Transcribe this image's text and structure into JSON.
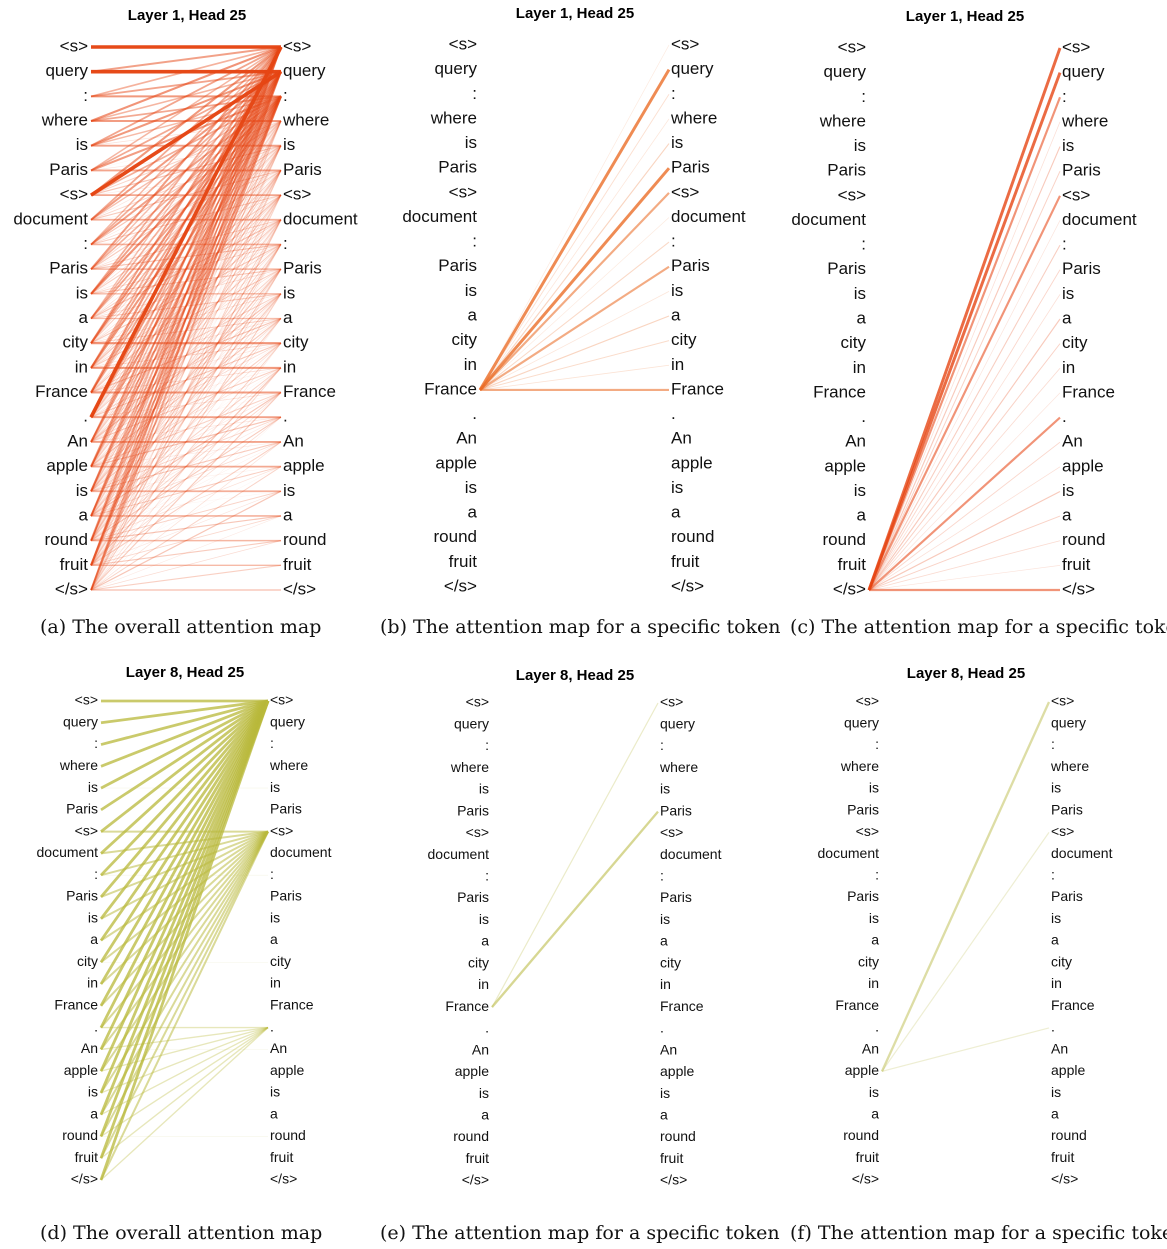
{
  "tokens": [
    "<s>",
    "query",
    ":",
    "where",
    "is",
    "Paris",
    "<s>",
    "document",
    ":",
    "Paris",
    "is",
    "a",
    "city",
    "in",
    "France",
    ".",
    "An",
    "apple",
    "is",
    "a",
    "round",
    "fruit",
    "</s>"
  ],
  "panels": [
    {
      "title": "Layer 1, Head 25",
      "caption": "(a) The overall attention map"
    },
    {
      "title": "Layer 1, Head 25",
      "caption": "(b) The attention map for a specific token"
    },
    {
      "title": "Layer 1, Head 25",
      "caption": "(c) The attention map for a specific token"
    },
    {
      "title": "Layer 8, Head 25",
      "caption": "(d) The overall attention map"
    },
    {
      "title": "Layer 8, Head 25",
      "caption": "(e) The attention map for a specific token"
    },
    {
      "title": "Layer 8, Head 25",
      "caption": "(f) The attention map for a specific token"
    }
  ]
}
